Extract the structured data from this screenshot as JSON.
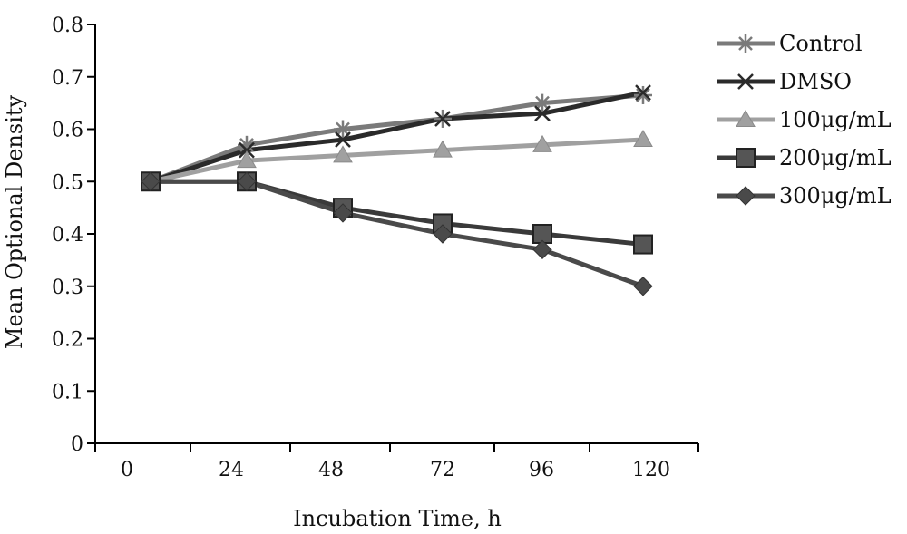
{
  "chart_data": {
    "type": "line",
    "xlabel": "Incubation Time, h",
    "ylabel": "Mean Optional Density",
    "x_ticks": [
      "0",
      "24",
      "48",
      "72",
      "96",
      "120"
    ],
    "y_ticks": [
      "0",
      "0.1",
      "0.2",
      "0.3",
      "0.4",
      "0.5",
      "0.6",
      "0.7",
      "0.8"
    ],
    "ylim": [
      0,
      0.8
    ],
    "x": [
      0,
      24,
      48,
      72,
      96,
      120
    ],
    "grid": false,
    "legend_position": "right",
    "series": [
      {
        "name": "Control",
        "marker": "asterisk",
        "color": "#7a7a7a",
        "values": [
          0.5,
          0.57,
          0.6,
          0.62,
          0.65,
          0.665
        ]
      },
      {
        "name": "DMSO",
        "marker": "x",
        "color": "#2a2a2a",
        "values": [
          0.5,
          0.56,
          0.58,
          0.62,
          0.63,
          0.67
        ]
      },
      {
        "name": "100μg/mL",
        "marker": "triangle",
        "color": "#a0a0a0",
        "values": [
          0.5,
          0.54,
          0.55,
          0.56,
          0.57,
          0.58
        ]
      },
      {
        "name": "200μg/mL",
        "marker": "square",
        "color": "#3a3a3a",
        "values": [
          0.5,
          0.5,
          0.45,
          0.42,
          0.4,
          0.38
        ]
      },
      {
        "name": "300μg/mL",
        "marker": "diamond",
        "color": "#4a4a4a",
        "values": [
          0.5,
          0.5,
          0.44,
          0.4,
          0.37,
          0.3
        ]
      }
    ]
  }
}
